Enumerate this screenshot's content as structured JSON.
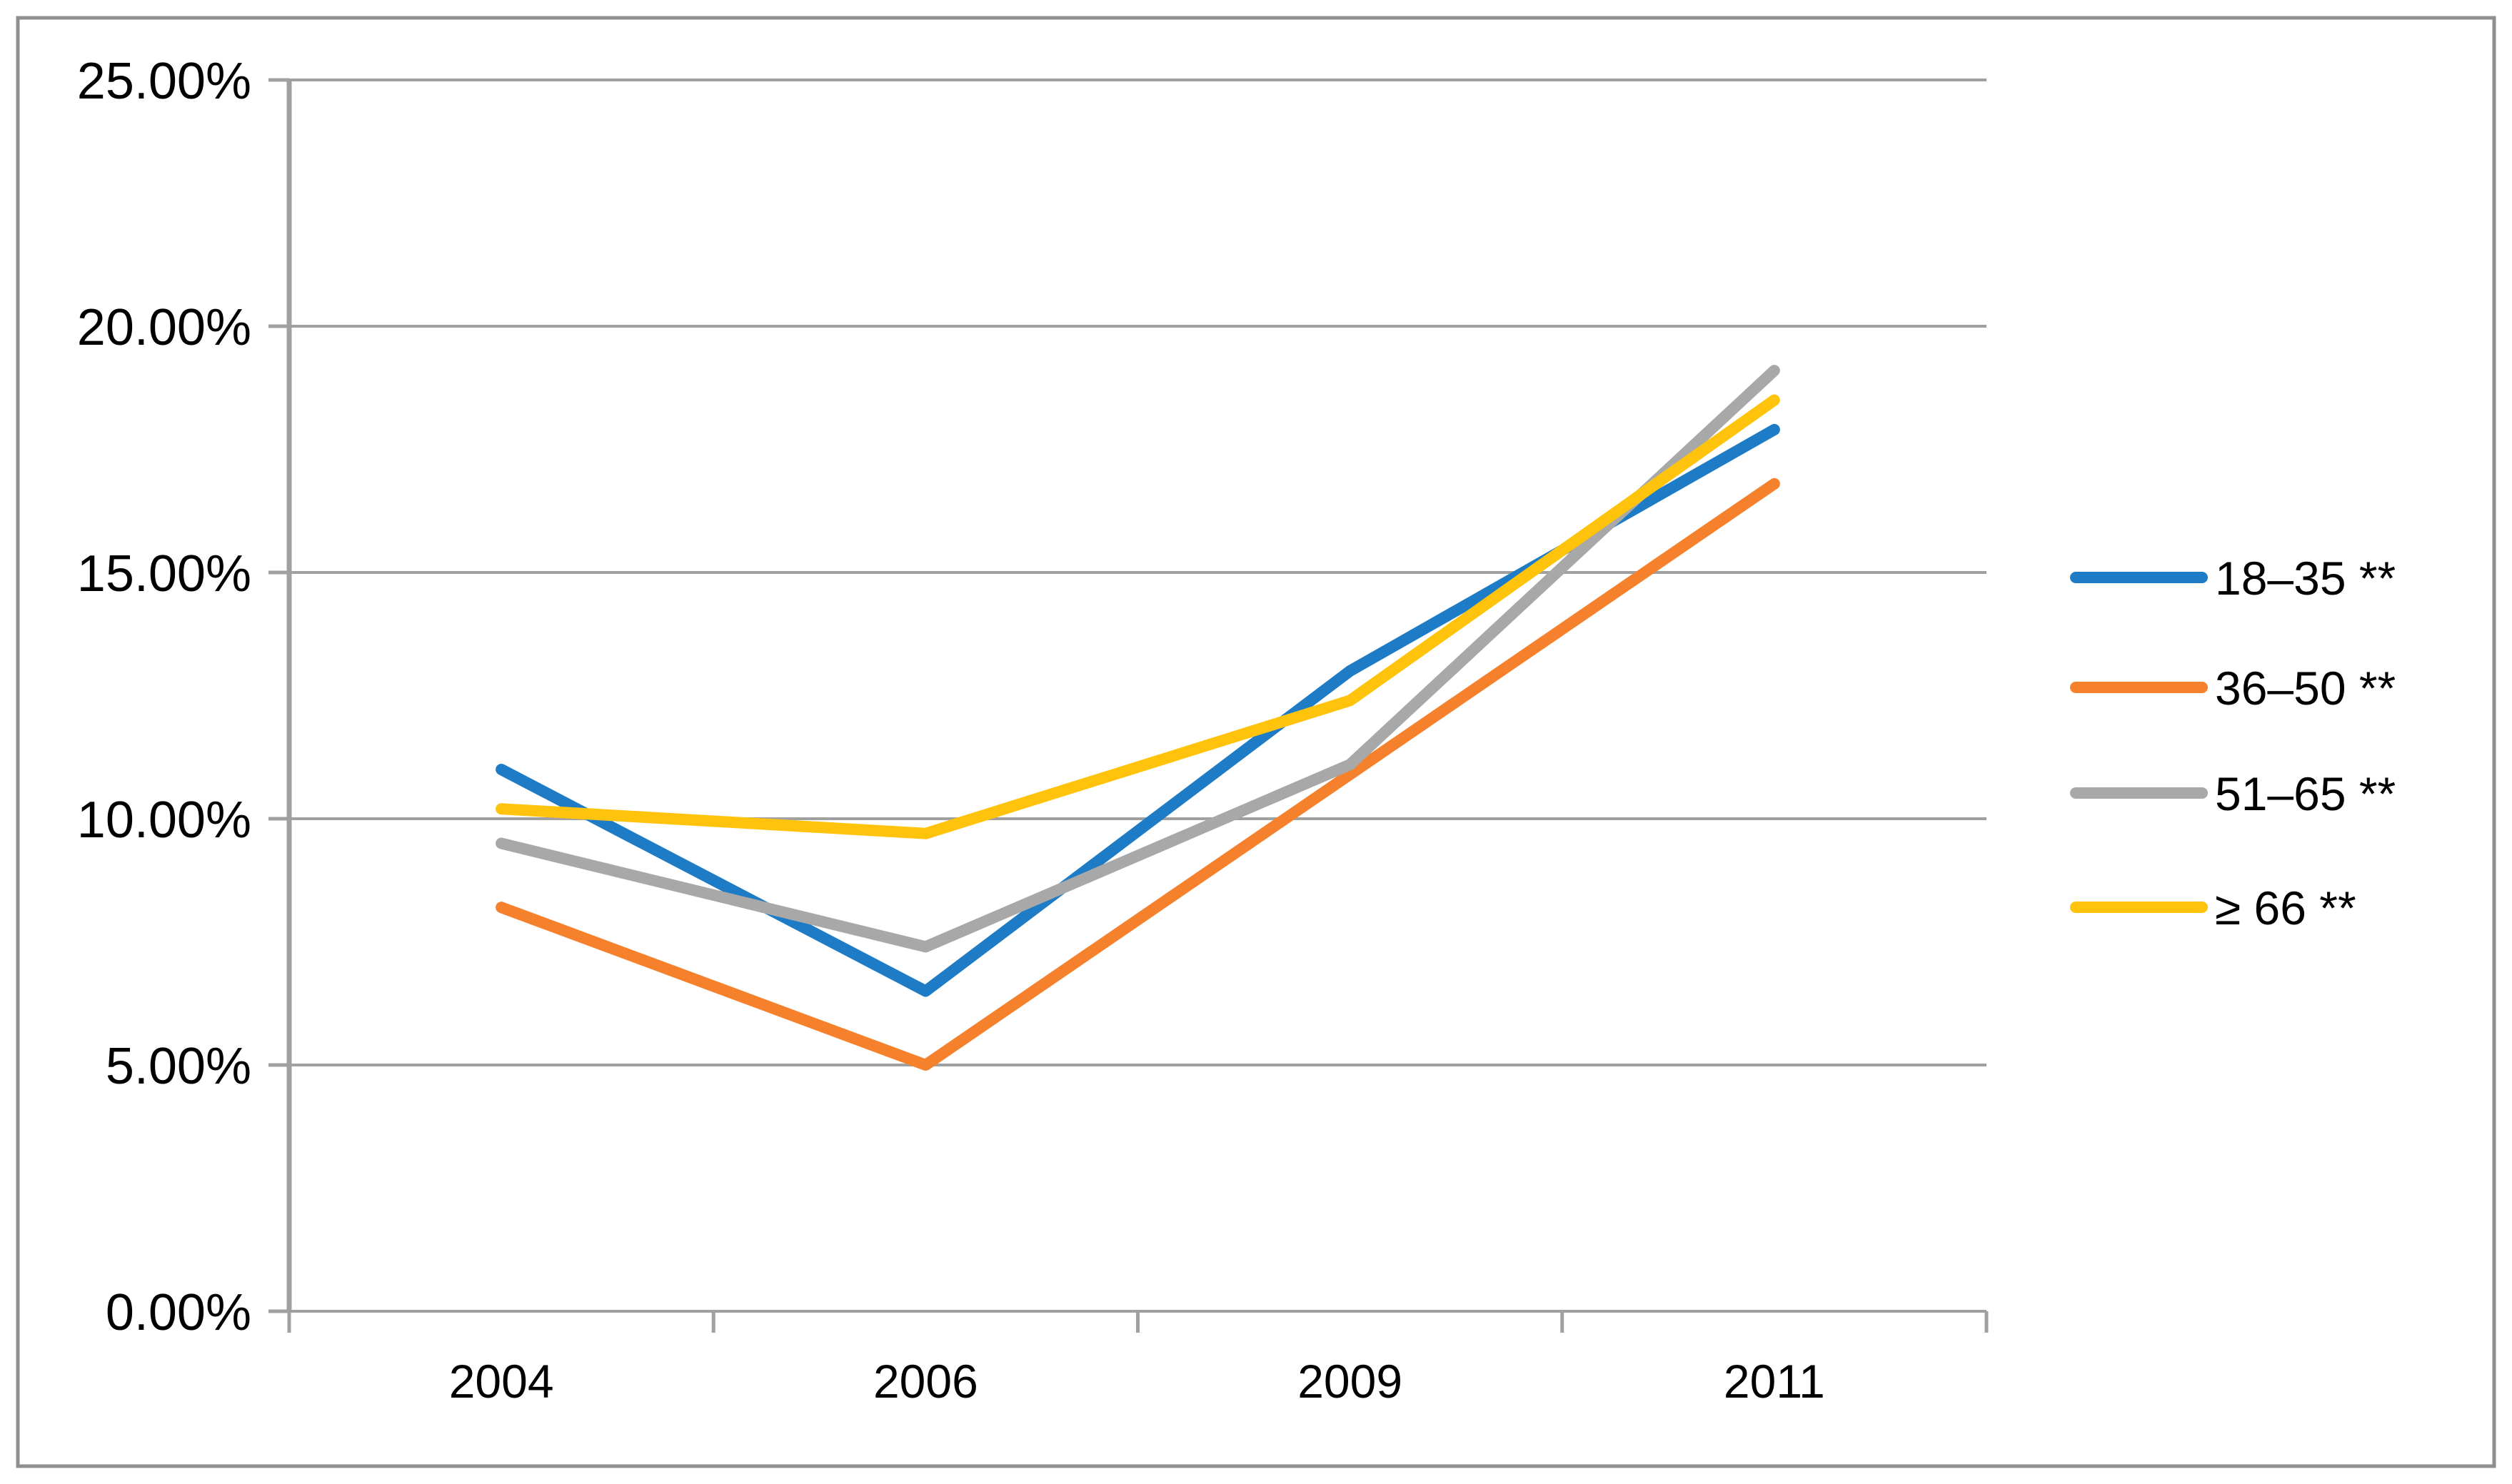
{
  "chart_data": {
    "type": "line",
    "categories": [
      "2004",
      "2006",
      "2009",
      "2011"
    ],
    "series": [
      {
        "name": "18–35 **",
        "color": "#1D7CC5",
        "values": [
          11.0,
          6.5,
          13.0,
          17.9
        ]
      },
      {
        "name": "36–50 **",
        "color": "#F5812C",
        "values": [
          8.2,
          5.0,
          10.9,
          16.8
        ]
      },
      {
        "name": "51–65 **",
        "color": "#A8A8A8",
        "values": [
          9.5,
          7.4,
          11.1,
          19.1
        ]
      },
      {
        "name": "≥ 66 **",
        "color": "#FFC30B",
        "values": [
          10.2,
          9.7,
          12.4,
          18.5
        ]
      }
    ],
    "title": "",
    "xlabel": "",
    "ylabel": "",
    "ylim": [
      0,
      25
    ],
    "y_ticks": [
      0,
      5,
      10,
      15,
      20,
      25
    ],
    "y_tick_labels": [
      "0.00%",
      "5.00%",
      "10.00%",
      "15.00%",
      "20.00%",
      "25.00%"
    ],
    "grid": true,
    "legend_position": "right",
    "colors": {
      "grid_line": "#A0A0A0",
      "axis_line": "#A0A0A0",
      "outer_border": "#8F8F8F",
      "text": "#000000",
      "background": "#FFFFFF"
    }
  }
}
